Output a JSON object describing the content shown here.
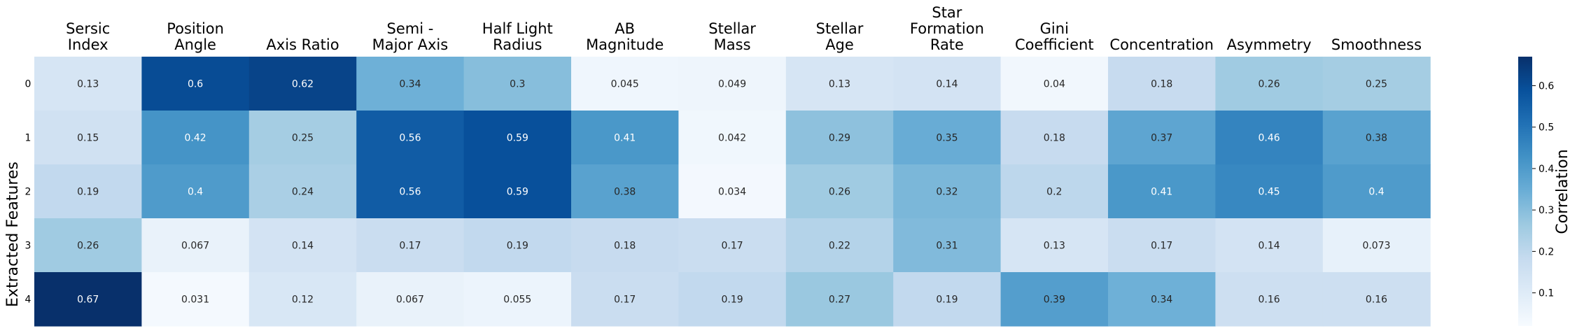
{
  "chart_data": {
    "type": "heatmap",
    "title": "",
    "xlabel": "",
    "ylabel": "Extracted Features",
    "colorbar_label": "Correlation",
    "colormap": "Blues",
    "color_range": [
      0.02,
      0.67
    ],
    "colorbar_ticks": [
      "0.1",
      "0.2",
      "0.3",
      "0.4",
      "0.5",
      "0.6"
    ],
    "columns": [
      [
        "Sersic",
        "Index"
      ],
      [
        "Position",
        "Angle"
      ],
      [
        "Axis Ratio"
      ],
      [
        "Semi -",
        "Major Axis"
      ],
      [
        "Half Light",
        "Radius"
      ],
      [
        "AB",
        "Magnitude"
      ],
      [
        "Stellar",
        "Mass"
      ],
      [
        "Stellar",
        "Age"
      ],
      [
        "Star",
        "Formation",
        "Rate"
      ],
      [
        "Gini",
        "Coefficient"
      ],
      [
        "Concentration"
      ],
      [
        "Asymmetry"
      ],
      [
        "Smoothness"
      ]
    ],
    "rows": [
      "0",
      "1",
      "2",
      "3",
      "4"
    ],
    "values": [
      [
        0.13,
        0.6,
        0.62,
        0.34,
        0.3,
        0.045,
        0.049,
        0.13,
        0.14,
        0.04,
        0.18,
        0.26,
        0.25
      ],
      [
        0.15,
        0.42,
        0.25,
        0.56,
        0.59,
        0.41,
        0.042,
        0.29,
        0.35,
        0.18,
        0.37,
        0.46,
        0.38
      ],
      [
        0.19,
        0.4,
        0.24,
        0.56,
        0.59,
        0.38,
        0.034,
        0.26,
        0.32,
        0.2,
        0.41,
        0.45,
        0.4
      ],
      [
        0.26,
        0.067,
        0.14,
        0.17,
        0.19,
        0.18,
        0.17,
        0.22,
        0.31,
        0.13,
        0.17,
        0.14,
        0.073
      ],
      [
        0.67,
        0.031,
        0.12,
        0.067,
        0.055,
        0.17,
        0.19,
        0.27,
        0.19,
        0.39,
        0.34,
        0.16,
        0.16
      ]
    ]
  }
}
